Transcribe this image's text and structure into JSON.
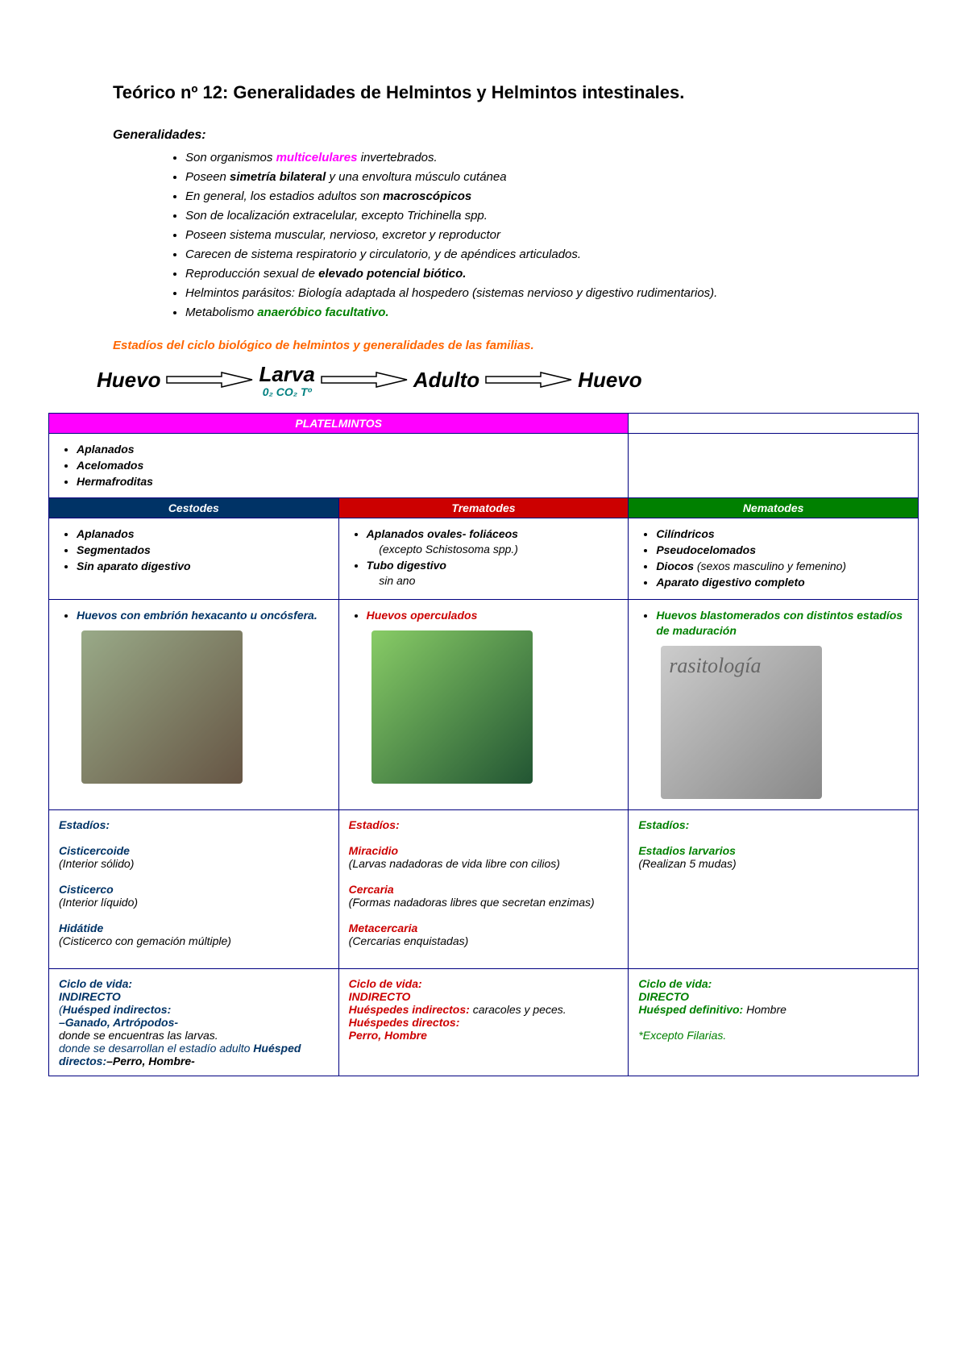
{
  "title": "Teórico nº 12: Generalidades de Helmintos y Helmintos intestinales.",
  "subtitle": "Generalidades:",
  "gen_items": [
    {
      "pre": "Son organismos ",
      "hl": "multicelulares",
      "hl_cls": "magenta",
      "post": " invertebrados."
    },
    {
      "pre": "Poseen ",
      "b": "simetría bilateral",
      "post": " y una envoltura músculo cutánea"
    },
    {
      "pre": "En general, los estadios adultos son ",
      "b": "macroscópicos",
      "post": ""
    },
    {
      "pre": "Son de localización extracelular, excepto Trichinella spp.",
      "b": "",
      "post": ""
    },
    {
      "pre": "Poseen sistema muscular, nervioso, excretor y reproductor",
      "b": "",
      "post": ""
    },
    {
      "pre": "Carecen de sistema respiratorio y circulatorio, y de apéndices articulados.",
      "b": "",
      "post": ""
    },
    {
      "pre": "Reproducción sexual de ",
      "b": "elevado potencial biótico.",
      "post": ""
    },
    {
      "pre": "Helmintos parásitos: Biología adaptada al hospedero (sistemas nervioso y digestivo rudimentarios).",
      "b": "",
      "post": ""
    },
    {
      "pre": "Metabolismo ",
      "hl": "anaeróbico facultativo.",
      "hl_cls": "green",
      "post": ""
    }
  ],
  "orange_line": "Estadíos del ciclo biológico de helmintos y generalidades de las familias.",
  "cycle": {
    "w1": "Huevo",
    "w2": "Larva",
    "w3": "Adulto",
    "w4": "Huevo",
    "sub": "0₂ CO₂ Tº"
  },
  "plath_header": "PLATELMINTOS",
  "plath_items": [
    "Aplanados",
    "Acelomados",
    "Hermafroditas"
  ],
  "colheads": {
    "c": "Cestodes",
    "t": "Trematodes",
    "n": "Nematodes"
  },
  "row1": {
    "c": [
      "Aplanados",
      "Segmentados",
      "Sin aparato digestivo"
    ],
    "t": [
      {
        "b": "Aplanados ovales- foliáceos",
        "sub": "(excepto Schistosoma spp.)"
      },
      {
        "b": "Tubo digestivo",
        "sub": "sin ano"
      }
    ],
    "n": [
      {
        "b": "Cilíndricos"
      },
      {
        "b": "Pseudocelomados"
      },
      {
        "b": "Diocos",
        "i": " (sexos masculino y femenino)"
      },
      {
        "b": "Aparato digestivo completo"
      }
    ]
  },
  "row2": {
    "c": "Huevos con embrión hexacanto u oncósfera.",
    "t": "Huevos operculados",
    "n": "Huevos blastomerados con distintos estadíos de maduración"
  },
  "row3": {
    "c": {
      "title": "Estadíos:",
      "items": [
        {
          "h": "Cisticercoide",
          "d": "(Interior sólido)"
        },
        {
          "h": "Cisticerco",
          "d": "(Interior líquido)"
        },
        {
          "h": "Hidátide",
          "d": "(Cisticerco con gemación múltiple)"
        }
      ]
    },
    "t": {
      "title": "Estadíos:",
      "items": [
        {
          "h": "Miracidio",
          "d": "(Larvas nadadoras de vida libre con cilios)"
        },
        {
          "h": "Cercaria",
          "d": "(Formas nadadoras libres que secretan enzimas)"
        },
        {
          "h": "Metacercaria",
          "d": "(Cercarias enquistadas)"
        }
      ]
    },
    "n": {
      "title": "Estadíos:",
      "items": [
        {
          "h": "Estadios larvarios",
          "d": "(Realizan 5 mudas)"
        }
      ]
    }
  },
  "row4": {
    "c": {
      "title": "Ciclo de vida:",
      "type": "INDIRECTO",
      "lines": [
        {
          "i": "(",
          "b": "Huésped indirectos:",
          "rest": ""
        },
        {
          "b": " –Ganado, Artrópodos-",
          "rest": ""
        },
        {
          "rest": "donde se encuentras las larvas."
        },
        {
          "b": "Huésped directos:",
          "i": " donde se desarrollan el estadío adulto ",
          "b2": "–Perro, Hombre-"
        }
      ]
    },
    "t": {
      "title": "Ciclo de vida:",
      "type": "INDIRECTO",
      "lines": [
        {
          "b": "Huéspedes indirectos:",
          "rest": " caracoles y peces."
        },
        {
          "b": "Huéspedes directos:",
          "rest": ""
        },
        {
          "b": "Perro, Hombre",
          "rest": ""
        }
      ]
    },
    "n": {
      "title": "Ciclo de vida:",
      "type": "DIRECTO",
      "lines": [
        {
          "b": "Huésped definitivo:",
          "rest": " Hombre"
        },
        {
          "spacer": true
        },
        {
          "note": "*Excepto Filarias."
        }
      ]
    }
  }
}
